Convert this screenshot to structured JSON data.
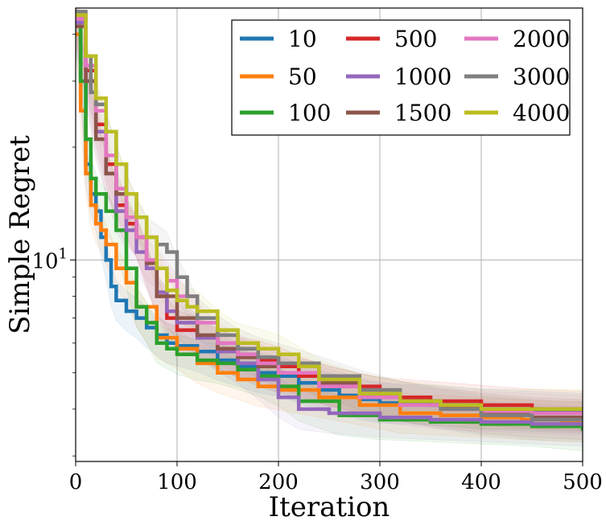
{
  "chart_data": {
    "type": "line",
    "title": "",
    "xlabel": "Iteration",
    "ylabel": "Simple Regret",
    "xlim": [
      0,
      500
    ],
    "ylim": [
      2.9,
      47
    ],
    "yscale": "log",
    "grid": true,
    "legend": {
      "placement": "top-right",
      "columns": 3
    },
    "x_ticks": [
      {
        "value": 0,
        "label": "0"
      },
      {
        "value": 100,
        "label": "100"
      },
      {
        "value": 200,
        "label": "200"
      },
      {
        "value": 300,
        "label": "300"
      },
      {
        "value": 400,
        "label": "400"
      },
      {
        "value": 500,
        "label": "500"
      }
    ],
    "y_ticks": [
      {
        "value": 10,
        "base": "10",
        "exp": "1"
      }
    ],
    "series": [
      {
        "name": "10",
        "color": "#1f77b4",
        "x": [
          0,
          5,
          10,
          15,
          20,
          25,
          30,
          35,
          40,
          50,
          60,
          70,
          80,
          90,
          100,
          120,
          140,
          160,
          180,
          200,
          220,
          240,
          260,
          280,
          300,
          350,
          400,
          450,
          500
        ],
        "y": [
          42,
          30,
          18,
          15,
          13.5,
          11.5,
          10,
          8.5,
          7.8,
          7.3,
          7.0,
          6.6,
          6.3,
          6.0,
          5.9,
          5.7,
          5.4,
          5.2,
          5.0,
          4.9,
          4.7,
          4.5,
          4.35,
          4.25,
          4.15,
          4.1,
          4.0,
          3.95,
          3.9
        ]
      },
      {
        "name": "50",
        "color": "#ff7f0e",
        "x": [
          0,
          5,
          10,
          15,
          20,
          25,
          30,
          40,
          50,
          60,
          80,
          100,
          120,
          140,
          160,
          180,
          200,
          240,
          280,
          320,
          360,
          400,
          440,
          480,
          500
        ],
        "y": [
          40,
          25,
          17,
          14,
          12.5,
          12,
          11,
          9.5,
          8.7,
          7.5,
          6.2,
          5.8,
          5.3,
          5.0,
          4.8,
          4.6,
          4.5,
          4.3,
          4.1,
          3.9,
          3.85,
          3.8,
          3.75,
          3.7,
          3.7
        ]
      },
      {
        "name": "100",
        "color": "#2ca02c",
        "x": [
          0,
          5,
          10,
          15,
          20,
          30,
          40,
          50,
          60,
          70,
          80,
          90,
          100,
          120,
          140,
          160,
          180,
          200,
          220,
          260,
          300,
          350,
          400,
          450,
          500
        ],
        "y": [
          42,
          30,
          21,
          16.5,
          15,
          13.5,
          12,
          9.5,
          7.5,
          6.8,
          6.0,
          5.8,
          5.6,
          5.4,
          5.3,
          5.1,
          4.9,
          4.6,
          4.2,
          3.85,
          3.75,
          3.7,
          3.65,
          3.6,
          3.5
        ]
      },
      {
        "name": "500",
        "color": "#d62728",
        "x": [
          0,
          10,
          20,
          30,
          40,
          50,
          60,
          70,
          80,
          90,
          100,
          120,
          140,
          160,
          180,
          200,
          220,
          250,
          300,
          350,
          400,
          450,
          500
        ],
        "y": [
          44,
          32,
          23,
          18,
          14,
          12.5,
          11.5,
          9.5,
          8.0,
          7.0,
          6.5,
          6.2,
          5.8,
          5.5,
          5.4,
          5.2,
          4.9,
          4.6,
          4.3,
          4.2,
          4.1,
          4.0,
          3.95
        ]
      },
      {
        "name": "1000",
        "color": "#9467bd",
        "x": [
          0,
          10,
          20,
          30,
          40,
          50,
          60,
          70,
          80,
          90,
          100,
          120,
          140,
          160,
          180,
          200,
          220,
          250,
          300,
          350,
          400,
          450,
          500
        ],
        "y": [
          43,
          30,
          22,
          17,
          13.5,
          12,
          10.5,
          9.5,
          8.2,
          7.3,
          6.8,
          6.2,
          5.7,
          5.3,
          4.8,
          4.3,
          4.0,
          3.9,
          3.8,
          3.75,
          3.7,
          3.65,
          3.6
        ]
      },
      {
        "name": "1500",
        "color": "#8c564b",
        "x": [
          0,
          10,
          20,
          30,
          40,
          50,
          60,
          70,
          80,
          100,
          120,
          140,
          160,
          180,
          200,
          240,
          280,
          320,
          360,
          400,
          450,
          500
        ],
        "y": [
          42,
          30,
          21,
          17,
          15,
          13,
          11.5,
          9.8,
          8.0,
          7.0,
          6.3,
          5.8,
          5.5,
          5.2,
          5.0,
          4.7,
          4.4,
          4.2,
          4.05,
          3.9,
          3.8,
          3.75
        ]
      },
      {
        "name": "2000",
        "color": "#e377c2",
        "x": [
          0,
          10,
          20,
          30,
          40,
          50,
          60,
          70,
          80,
          90,
          100,
          120,
          140,
          160,
          180,
          200,
          240,
          280,
          320,
          360,
          400,
          450,
          500
        ],
        "y": [
          44,
          33,
          25,
          19,
          15.5,
          13,
          11.5,
          10,
          9.5,
          8.8,
          8.0,
          6.8,
          6.0,
          5.6,
          5.3,
          5.0,
          4.6,
          4.3,
          4.1,
          4.0,
          3.95,
          3.9,
          3.85
        ]
      },
      {
        "name": "3000",
        "color": "#7f7f7f",
        "x": [
          0,
          10,
          15,
          20,
          30,
          40,
          50,
          60,
          70,
          80,
          90,
          100,
          110,
          120,
          140,
          160,
          180,
          200,
          240,
          280,
          320,
          360,
          400,
          450,
          500
        ],
        "y": [
          46,
          35,
          28,
          26,
          22,
          18,
          15,
          13,
          11.5,
          11,
          10.5,
          9.0,
          8.0,
          7.0,
          6.3,
          5.8,
          5.5,
          5.3,
          4.9,
          4.5,
          4.2,
          4.0,
          3.85,
          3.75,
          3.7
        ]
      },
      {
        "name": "4000",
        "color": "#bcbd22",
        "x": [
          0,
          10,
          20,
          30,
          40,
          50,
          60,
          70,
          80,
          90,
          100,
          110,
          120,
          140,
          160,
          180,
          200,
          220,
          240,
          280,
          320,
          360,
          400,
          450,
          500
        ],
        "y": [
          45,
          35,
          27,
          22,
          18,
          15,
          13,
          11.5,
          9.5,
          8.3,
          7.8,
          7.5,
          7.3,
          6.5,
          6.0,
          5.8,
          5.6,
          5.2,
          4.8,
          4.4,
          4.2,
          4.1,
          4.0,
          4.0,
          4.0
        ]
      }
    ]
  }
}
